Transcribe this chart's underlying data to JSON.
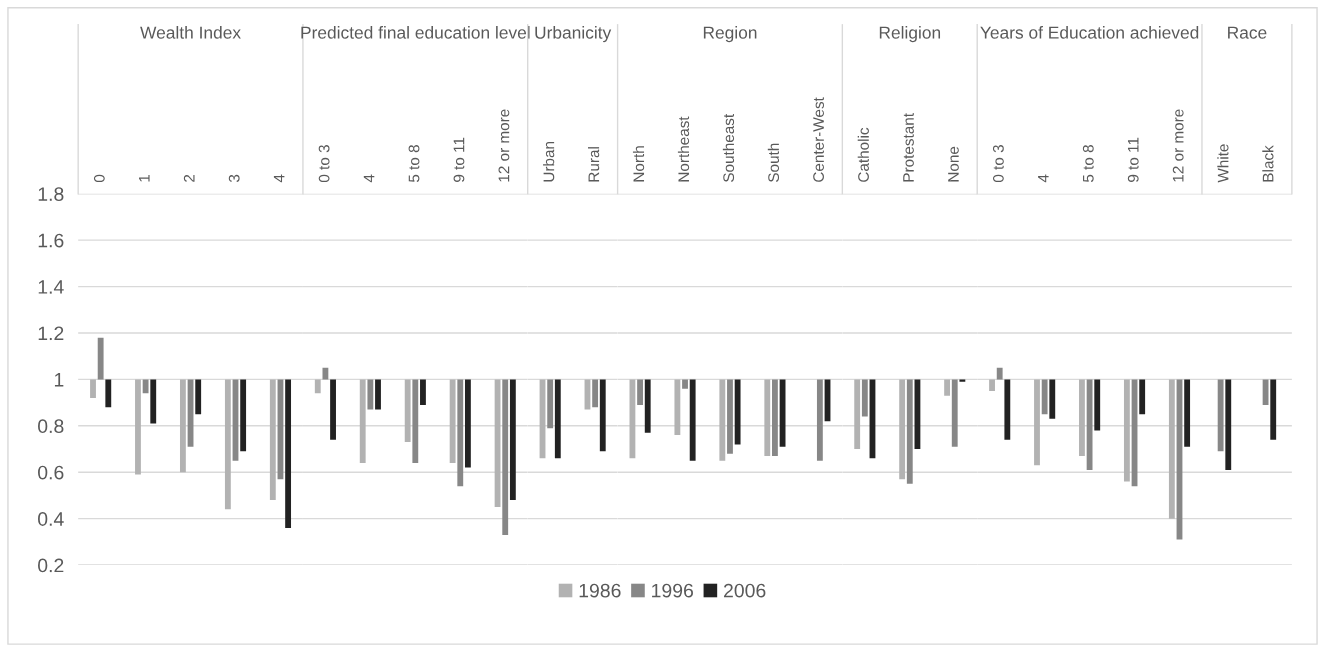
{
  "chart_data": [
    {
      "type": "bar",
      "title": "Wealth Index",
      "categories": [
        "0",
        "1",
        "2",
        "3",
        "4"
      ],
      "series": [
        {
          "name": "1986",
          "color": "#b2b2b2",
          "base": [
            1,
            1,
            1,
            1,
            1
          ],
          "values": [
            -0.08,
            -0.41,
            -0.4,
            -0.56,
            -0.52
          ]
        },
        {
          "name": "1996",
          "color": "#878787",
          "base": [
            1,
            1,
            1,
            1,
            1
          ],
          "values": [
            0.18,
            -0.06,
            -0.29,
            -0.35,
            -0.43
          ]
        },
        {
          "name": "2006",
          "color": "#222222",
          "base": [
            1,
            1,
            1,
            1,
            1
          ],
          "values": [
            -0.12,
            -0.19,
            -0.15,
            -0.31,
            -0.64
          ]
        }
      ],
      "ylim": [
        0.2,
        1.8
      ],
      "yticks": [
        0.2,
        0.4,
        0.6,
        0.8,
        1,
        1.2,
        1.4,
        1.6,
        1.8
      ],
      "grid": "y",
      "legend": "bottom"
    },
    {
      "type": "bar",
      "title": "Predicted final education level",
      "categories": [
        "0 to 3",
        "4",
        "5 to 8",
        "9 to 11",
        "12 or more"
      ],
      "series": [
        {
          "color": "#b2b2b2",
          "base": [
            1,
            1,
            1,
            1,
            1
          ],
          "values": [
            -0.06,
            -0.36,
            -0.27,
            -0.36,
            -0.55
          ]
        },
        {
          "color": "#878787",
          "base": [
            1,
            1,
            1,
            1,
            1
          ],
          "values": [
            0.05,
            -0.13,
            -0.36,
            -0.46,
            -0.67
          ]
        },
        {
          "color": "#222222",
          "base": [
            1,
            1,
            1,
            1,
            1
          ],
          "values": [
            -0.26,
            -0.13,
            -0.11,
            -0.38,
            -0.52
          ]
        }
      ],
      "ylim": [
        0.2,
        1.8
      ],
      "yticks": [
        0.2,
        0.4,
        0.6,
        0.8,
        1,
        1.2,
        1.4,
        1.6,
        1.8
      ],
      "grid": "y",
      "tick_labels": "x"
    },
    {
      "type": "bar",
      "title": "Urbanicity",
      "categories": [
        "Urban",
        "Rural"
      ],
      "series": [
        {
          "color": "#b2b2b2",
          "base": [
            1,
            1
          ],
          "values": [
            -0.34,
            -0.13
          ]
        },
        {
          "color": "#878787",
          "base": [
            1,
            1
          ],
          "values": [
            -0.21,
            -0.12
          ]
        },
        {
          "color": "#222222",
          "base": [
            1,
            1
          ],
          "values": [
            -0.34,
            -0.31
          ]
        }
      ],
      "ylim": [
        0.2,
        1.8
      ],
      "yticks": [
        0.2,
        0.4,
        0.6,
        0.8,
        1,
        1.2,
        1.4,
        1.6,
        1.8
      ],
      "grid": "y",
      "tick_labels": "x"
    },
    {
      "type": "bar",
      "title": "Region",
      "categories": [
        "North",
        "Northeast",
        "Southeast",
        "South",
        "Center-West"
      ],
      "series": [
        {
          "color": "#b2b2b2",
          "base": [
            1,
            1,
            1,
            1,
            null
          ],
          "values": [
            -0.34,
            -0.24,
            -0.35,
            -0.33,
            null
          ]
        },
        {
          "color": "#878787",
          "base": [
            1,
            1,
            1,
            1,
            1
          ],
          "values": [
            -0.11,
            -0.04,
            -0.32,
            -0.33,
            -0.35
          ]
        },
        {
          "color": "#222222",
          "base": [
            1,
            1,
            1,
            1,
            1
          ],
          "values": [
            -0.23,
            -0.35,
            -0.28,
            -0.29,
            -0.18
          ]
        }
      ],
      "ylim": [
        0.2,
        1.8
      ],
      "yticks": [
        0.2,
        0.4,
        0.6,
        0.8,
        1,
        1.2,
        1.4,
        1.6,
        1.8
      ],
      "grid": "y",
      "tick_labels": "x"
    },
    {
      "type": "bar",
      "title": "Religion",
      "categories": [
        "Catholic",
        "Protestant",
        "None"
      ],
      "series": [
        {
          "color": "#b2b2b2",
          "base": [
            1,
            1,
            1
          ],
          "values": [
            -0.3,
            -0.43,
            -0.07
          ]
        },
        {
          "color": "#878787",
          "base": [
            1,
            1,
            1
          ],
          "values": [
            -0.16,
            -0.45,
            -0.29
          ]
        },
        {
          "color": "#222222",
          "base": [
            1,
            1,
            1
          ],
          "values": [
            -0.34,
            -0.3,
            -0.01
          ]
        }
      ],
      "ylim": [
        0.2,
        1.8
      ],
      "yticks": [
        0.2,
        0.4,
        0.6,
        0.8,
        1,
        1.2,
        1.4,
        1.6,
        1.8
      ],
      "grid": "y",
      "tick_labels": "x"
    },
    {
      "type": "bar",
      "title": "Years of Education achieved",
      "categories": [
        "0 to 3",
        "4",
        "5 to 8",
        "9 to 11",
        "12 or more"
      ],
      "series": [
        {
          "color": "#b2b2b2",
          "base": [
            1,
            1,
            1,
            1,
            1
          ],
          "values": [
            -0.05,
            -0.37,
            -0.33,
            -0.44,
            -0.6
          ]
        },
        {
          "color": "#878787",
          "base": [
            1,
            1,
            1,
            1,
            1
          ],
          "values": [
            0.05,
            -0.15,
            -0.39,
            -0.46,
            -0.69
          ]
        },
        {
          "color": "#222222",
          "base": [
            1,
            1,
            1,
            1,
            1
          ],
          "values": [
            -0.26,
            -0.17,
            -0.22,
            -0.15,
            -0.29
          ]
        }
      ],
      "ylim": [
        0.2,
        1.8
      ],
      "yticks": [
        0.2,
        0.4,
        0.6,
        0.8,
        1,
        1.2,
        1.4,
        1.6,
        1.8
      ],
      "grid": "y",
      "tick_labels": "x"
    },
    {
      "type": "bar",
      "title": "Race",
      "categories": [
        "White",
        "Black"
      ],
      "series": [
        {
          "color": "#878787",
          "base": [
            1,
            1
          ],
          "values": [
            -0.31,
            -0.11
          ]
        },
        {
          "color": "#222222",
          "base": [
            1,
            1
          ],
          "values": [
            -0.39,
            -0.26
          ]
        }
      ],
      "ylim": [
        0.2,
        1.8
      ],
      "yticks": [
        0.2,
        0.4,
        0.6,
        0.8,
        1,
        1.2,
        1.4,
        1.6,
        1.8
      ],
      "grid": "y",
      "tick_labels": "x"
    }
  ]
}
